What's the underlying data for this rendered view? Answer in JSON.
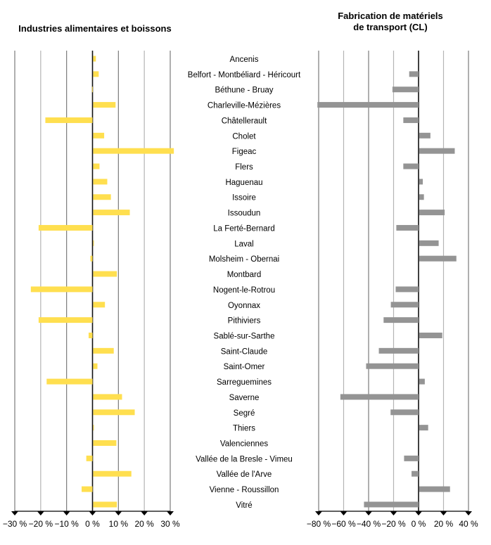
{
  "chart_data": [
    {
      "type": "bar",
      "orientation": "horizontal",
      "title": "Industries alimentaires et boissons",
      "xlabel": "",
      "ylabel": "",
      "xlim": [
        -30,
        30
      ],
      "xticks": [
        -30,
        -20,
        -10,
        0,
        10,
        20,
        30
      ],
      "xtick_labels": [
        "−30 %",
        "−20 %",
        "−10 %",
        "0 %",
        "10 %",
        "20 %",
        "30 %"
      ],
      "grid": true,
      "color": "#FFDF4F",
      "categories": [
        "Ancenis",
        "Belfort - Montbéliard - Héricourt",
        "Béthune - Bruay",
        "Charleville-Mézières",
        "Châtellerault",
        "Cholet",
        "Figeac",
        "Flers",
        "Haguenau",
        "Issoire",
        "Issoudun",
        "La Ferté-Bernard",
        "Laval",
        "Molsheim - Obernai",
        "Montbard",
        "Nogent-le-Rotrou",
        "Oyonnax",
        "Pithiviers",
        "Sablé-sur-Sarthe",
        "Saint-Claude",
        "Saint-Omer",
        "Sarreguemines",
        "Saverne",
        "Segré",
        "Thiers",
        "Valenciennes",
        "Vallée de la Bresle - Vimeu",
        "Vallée de l'Arve",
        "Vienne - Roussillon",
        "Vitré"
      ],
      "values": [
        1.3,
        2.4,
        -0.2,
        8.9,
        -18.2,
        4.5,
        31.4,
        2.7,
        5.7,
        7.1,
        14.4,
        -20.8,
        0.4,
        -0.8,
        9.4,
        -23.8,
        4.8,
        -20.8,
        -1.5,
        8.2,
        1.9,
        -17.7,
        11.4,
        16.3,
        0.5,
        9.2,
        -2.4,
        15.0,
        -4.2,
        9.4
      ]
    },
    {
      "type": "bar",
      "orientation": "horizontal",
      "title": "Fabrication de matériels de transport (CL)",
      "title_lines": [
        "Fabrication de matériels",
        "de transport (CL)"
      ],
      "xlabel": "",
      "ylabel": "",
      "xlim": [
        -80,
        40
      ],
      "xticks": [
        -80,
        -60,
        -40,
        -20,
        0,
        20,
        40
      ],
      "xtick_labels": [
        "−80 %",
        "−60 %",
        "−40 %",
        "−20 %",
        "0 %",
        "20 %",
        "40 %"
      ],
      "grid": true,
      "color": "#949494",
      "categories": [
        "Ancenis",
        "Belfort - Montbéliard - Héricourt",
        "Béthune - Bruay",
        "Charleville-Mézières",
        "Châtellerault",
        "Cholet",
        "Figeac",
        "Flers",
        "Haguenau",
        "Issoire",
        "Issoudun",
        "La Ferté-Bernard",
        "Laval",
        "Molsheim - Obernai",
        "Montbard",
        "Nogent-le-Rotrou",
        "Oyonnax",
        "Pithiviers",
        "Sablé-sur-Sarthe",
        "Saint-Claude",
        "Saint-Omer",
        "Sarreguemines",
        "Saverne",
        "Segré",
        "Thiers",
        "Valenciennes",
        "Vallée de la Bresle - Vimeu",
        "Vallée de l'Arve",
        "Vienne - Roussillon",
        "Vitré"
      ],
      "values": [
        0,
        -7.5,
        -20.9,
        -81.0,
        -12.2,
        9.5,
        29.0,
        -12.2,
        3.4,
        4.3,
        20.9,
        -17.8,
        16.1,
        30.3,
        0,
        -18.3,
        -22.2,
        -28.0,
        19.0,
        -31.8,
        -42.0,
        5.0,
        -62.6,
        -22.4,
        7.7,
        0,
        -11.6,
        -5.6,
        25.2,
        -43.7
      ]
    }
  ]
}
